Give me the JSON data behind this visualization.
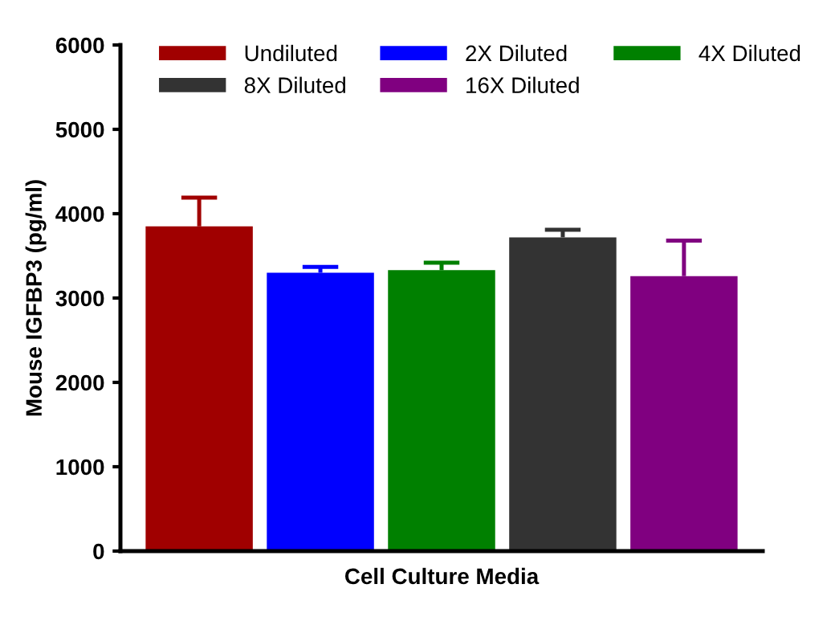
{
  "chart_data": {
    "type": "bar",
    "xlabel": "Cell Culture Media",
    "ylabel": "Mouse IGFBP3 (pg/ml)",
    "categories": [
      null
    ],
    "series": [
      {
        "name": "Undiluted",
        "color": "#a00000",
        "values": [
          3850
        ],
        "errors": [
          [
            3850,
            4190
          ]
        ]
      },
      {
        "name": "2X Diluted",
        "color": "#0000ff",
        "values": [
          3300
        ],
        "errors": [
          [
            3300,
            3370
          ]
        ]
      },
      {
        "name": "4X Diluted",
        "color": "#008000",
        "values": [
          3330
        ],
        "errors": [
          [
            3330,
            3420
          ]
        ]
      },
      {
        "name": "8X Diluted",
        "color": "#333333",
        "values": [
          3720
        ],
        "errors": [
          [
            3720,
            3810
          ]
        ]
      },
      {
        "name": "16X Diluted",
        "color": "#800080",
        "values": [
          3260
        ],
        "errors": [
          [
            3260,
            3680
          ]
        ]
      }
    ],
    "ylim": [
      0,
      6000
    ],
    "yticks": [
      0,
      1000,
      2000,
      3000,
      4000,
      5000,
      6000
    ],
    "grid": false,
    "legend": "top"
  }
}
